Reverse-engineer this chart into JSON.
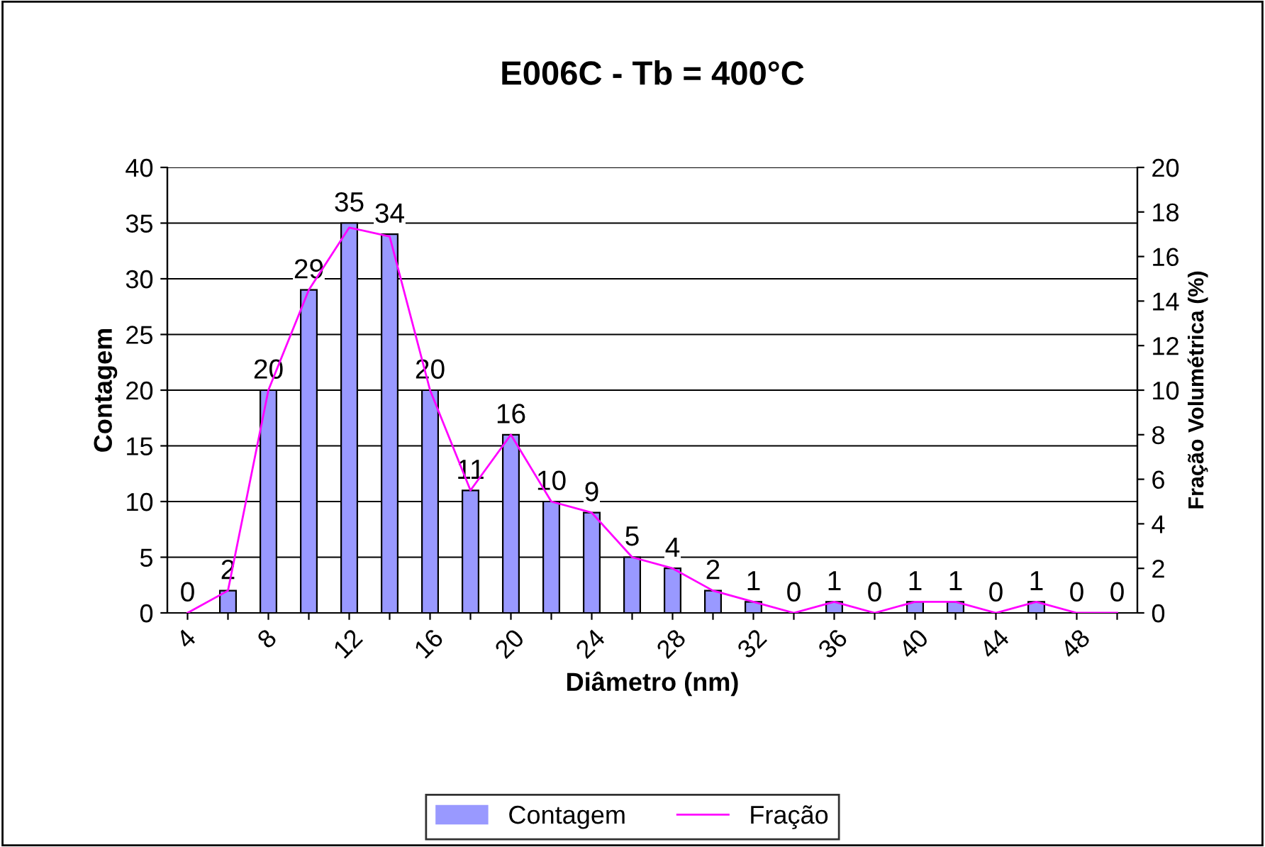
{
  "chart_data": {
    "type": "bar",
    "title": "E006C - Tb = 400°C",
    "xlabel": "Diâmetro (nm)",
    "ylabel": "Contagem",
    "y2label": "Fração Volumétrica (%)",
    "categories": [
      "4",
      null,
      "8",
      null,
      "12",
      null,
      "16",
      null,
      "20",
      null,
      "24",
      null,
      "28",
      null,
      "32",
      null,
      "36",
      null,
      "40",
      null,
      "44",
      null,
      "48",
      null
    ],
    "series": [
      {
        "name": "Contagem",
        "color": "#9999ff",
        "data_labels": true,
        "values": [
          0,
          2,
          20,
          29,
          35,
          34,
          20,
          11,
          16,
          10,
          9,
          5,
          4,
          2,
          1,
          0,
          1,
          0,
          1,
          1,
          0,
          1,
          0,
          0
        ]
      },
      {
        "name": "Fração",
        "type": "line",
        "axis": "y2",
        "color": "#ff00ff",
        "values": [
          0,
          1,
          10,
          14.5,
          17.3,
          16.9,
          10,
          5.5,
          8,
          5,
          4.5,
          2.5,
          2,
          1,
          0.5,
          0,
          0.5,
          0,
          0.5,
          0.5,
          0,
          0.5,
          0,
          0
        ]
      }
    ],
    "ylim": [
      0,
      40
    ],
    "yticks": [
      0,
      5,
      10,
      15,
      20,
      25,
      30,
      35,
      40
    ],
    "y2lim": [
      0,
      20
    ],
    "y2ticks": [
      0,
      2,
      4,
      6,
      8,
      10,
      12,
      14,
      16,
      18,
      20
    ],
    "grid": "y",
    "legend": "bottom"
  }
}
